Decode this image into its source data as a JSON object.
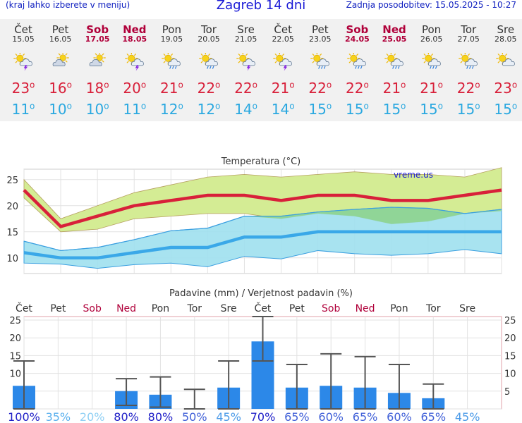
{
  "header": {
    "hint": "(kraj lahko izberete v meniju)",
    "title": "Zagreb 14 dni",
    "updated": "Zadnja posodobitev: 15.05.2025 - 10:27"
  },
  "days": [
    {
      "name": "Čet",
      "date": "15.05",
      "weekend": false,
      "icon": "sun-cloud-lightning-icon",
      "tmax": "23",
      "tmin": "11"
    },
    {
      "name": "Pet",
      "date": "16.05",
      "weekend": false,
      "icon": "cloud-sun-icon",
      "tmax": "16",
      "tmin": "10"
    },
    {
      "name": "Sob",
      "date": "17.05",
      "weekend": true,
      "icon": "cloud-sun-icon",
      "tmax": "18",
      "tmin": "10"
    },
    {
      "name": "Ned",
      "date": "18.05",
      "weekend": true,
      "icon": "sun-cloud-lightning-icon",
      "tmax": "20",
      "tmin": "11"
    },
    {
      "name": "Pon",
      "date": "19.05",
      "weekend": false,
      "icon": "sun-cloud-rain-icon",
      "tmax": "21",
      "tmin": "12"
    },
    {
      "name": "Tor",
      "date": "20.05",
      "weekend": false,
      "icon": "sun-cloud-rain-icon",
      "tmax": "22",
      "tmin": "12"
    },
    {
      "name": "Sre",
      "date": "21.05",
      "weekend": false,
      "icon": "sun-cloud-lightning-icon",
      "tmax": "22",
      "tmin": "14"
    },
    {
      "name": "Čet",
      "date": "22.05",
      "weekend": false,
      "icon": "sun-cloud-lightning-icon",
      "tmax": "21",
      "tmin": "14"
    },
    {
      "name": "Pet",
      "date": "23.05",
      "weekend": false,
      "icon": "sun-cloud-rain-icon",
      "tmax": "22",
      "tmin": "15"
    },
    {
      "name": "Sob",
      "date": "24.05",
      "weekend": true,
      "icon": "sun-cloud-rain-icon",
      "tmax": "22",
      "tmin": "15"
    },
    {
      "name": "Ned",
      "date": "25.05",
      "weekend": true,
      "icon": "sun-cloud-rain-icon",
      "tmax": "21",
      "tmin": "15"
    },
    {
      "name": "Pon",
      "date": "26.05",
      "weekend": false,
      "icon": "sun-cloud-rain-icon",
      "tmax": "21",
      "tmin": "15"
    },
    {
      "name": "Tor",
      "date": "27.05",
      "weekend": false,
      "icon": "sun-cloud-rain-icon",
      "tmax": "22",
      "tmin": "15"
    },
    {
      "name": "Sre",
      "date": "28.05",
      "weekend": false,
      "icon": "sun-cloud-icon",
      "tmax": "23",
      "tmin": "15"
    }
  ],
  "colors": {
    "tmax": "#d8203a",
    "tmin": "#2aa8e0",
    "max_band": "#d4ec94",
    "min_band": "#9ee0ee",
    "overlap": "#8ed48e",
    "bars": "#2c88e8",
    "weekend": "#b0003a"
  },
  "chart_data": [
    {
      "type": "line",
      "title": "Temperatura (°C)",
      "watermark": "vreme.us",
      "x": [
        "Čet",
        "Pet",
        "Sob",
        "Ned",
        "Pon",
        "Tor",
        "Sre",
        "Čet",
        "Pet",
        "Sob",
        "Ned",
        "Pon",
        "Tor",
        "Sre"
      ],
      "ylim": [
        7,
        27
      ],
      "yticks": [
        10,
        15,
        20,
        25
      ],
      "grid": true,
      "series": [
        {
          "values": [
            23,
            16,
            18,
            20,
            21,
            22,
            22,
            21,
            22,
            22,
            21,
            21,
            22,
            23
          ]
        },
        {
          "values": [
            25,
            17.5,
            20,
            22.5,
            24,
            25.5,
            26,
            25.5,
            26,
            26.5,
            26,
            26,
            25.5,
            27.3
          ]
        },
        {
          "values": [
            21.5,
            15,
            15.5,
            17.5,
            18,
            18.5,
            18.5,
            17.5,
            18.5,
            18,
            16.5,
            17,
            18.5,
            19
          ]
        },
        {
          "values": [
            11,
            10,
            10,
            11,
            12,
            12,
            14,
            14,
            15,
            15,
            15,
            15,
            15,
            15
          ]
        },
        {
          "values": [
            13.2,
            11.4,
            12,
            13.5,
            15.2,
            15.7,
            18,
            18,
            18.8,
            19.3,
            19.7,
            19.5,
            18.5,
            19.3
          ]
        },
        {
          "values": [
            9,
            8.8,
            8,
            8.7,
            9,
            8.3,
            10.3,
            9.8,
            11.4,
            10.8,
            10.5,
            10.8,
            11.6,
            10.8
          ]
        }
      ]
    },
    {
      "type": "bar",
      "title": "Padavine (mm) / Verjetnost padavin (%)",
      "categories": [
        "Čet",
        "Pet",
        "Sob",
        "Ned",
        "Pon",
        "Tor",
        "Sre",
        "Čet",
        "Pet",
        "Sob",
        "Ned",
        "Pon",
        "Tor",
        "Sre"
      ],
      "ylim": [
        0,
        26
      ],
      "yticks": [
        0,
        5,
        10,
        15,
        20,
        25
      ],
      "grid": true,
      "values": [
        6.5,
        0,
        0,
        5,
        4,
        0,
        6,
        19,
        6,
        6.5,
        6,
        4.5,
        3,
        0
      ],
      "range_low": [
        0,
        0,
        0,
        1,
        0.5,
        0,
        0,
        13.5,
        0,
        0,
        0,
        0,
        0,
        0
      ],
      "range_high": [
        13.5,
        0,
        0,
        8.5,
        9,
        5.5,
        13.5,
        26,
        12.5,
        15.5,
        14.7,
        12.5,
        7,
        0
      ],
      "probability": [
        "100%",
        "35%",
        "20%",
        "80%",
        "80%",
        "50%",
        "45%",
        "70%",
        "65%",
        "60%",
        "65%",
        "60%",
        "65%",
        "45%"
      ]
    }
  ]
}
